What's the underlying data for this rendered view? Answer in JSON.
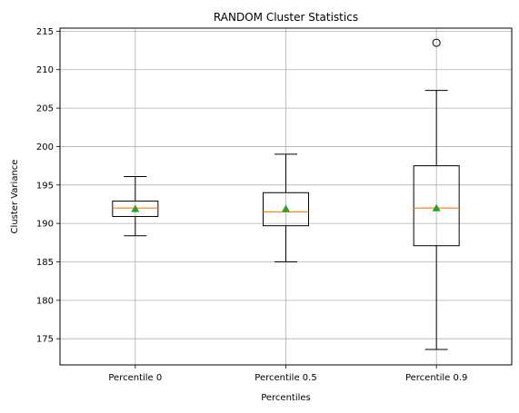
{
  "chart_data": {
    "type": "box",
    "title": "RANDOM Cluster Statistics",
    "xlabel": "Percentiles",
    "ylabel": "Cluster Variance",
    "ylim": [
      171.6,
      215.4
    ],
    "yticks": [
      175,
      180,
      185,
      190,
      195,
      200,
      205,
      210,
      215
    ],
    "grid": true,
    "categories": [
      "Percentile 0",
      "Percentile 0.5",
      "Percentile 0.9"
    ],
    "boxes": [
      {
        "whisker_low": 188.4,
        "q1": 190.9,
        "median": 192.0,
        "q3": 192.9,
        "whisker_high": 196.1,
        "mean": 191.9,
        "outliers": []
      },
      {
        "whisker_low": 185.0,
        "q1": 189.7,
        "median": 191.5,
        "q3": 194.0,
        "whisker_high": 199.0,
        "mean": 191.9,
        "outliers": []
      },
      {
        "whisker_low": 173.6,
        "q1": 187.1,
        "median": 192.0,
        "q3": 197.5,
        "whisker_high": 207.3,
        "mean": 192.0,
        "outliers": [
          213.5
        ]
      }
    ],
    "colors": {
      "box": "#000000",
      "median": "#ff7f0e",
      "mean": "#2ca02c",
      "grid": "#b0b0b0"
    }
  }
}
